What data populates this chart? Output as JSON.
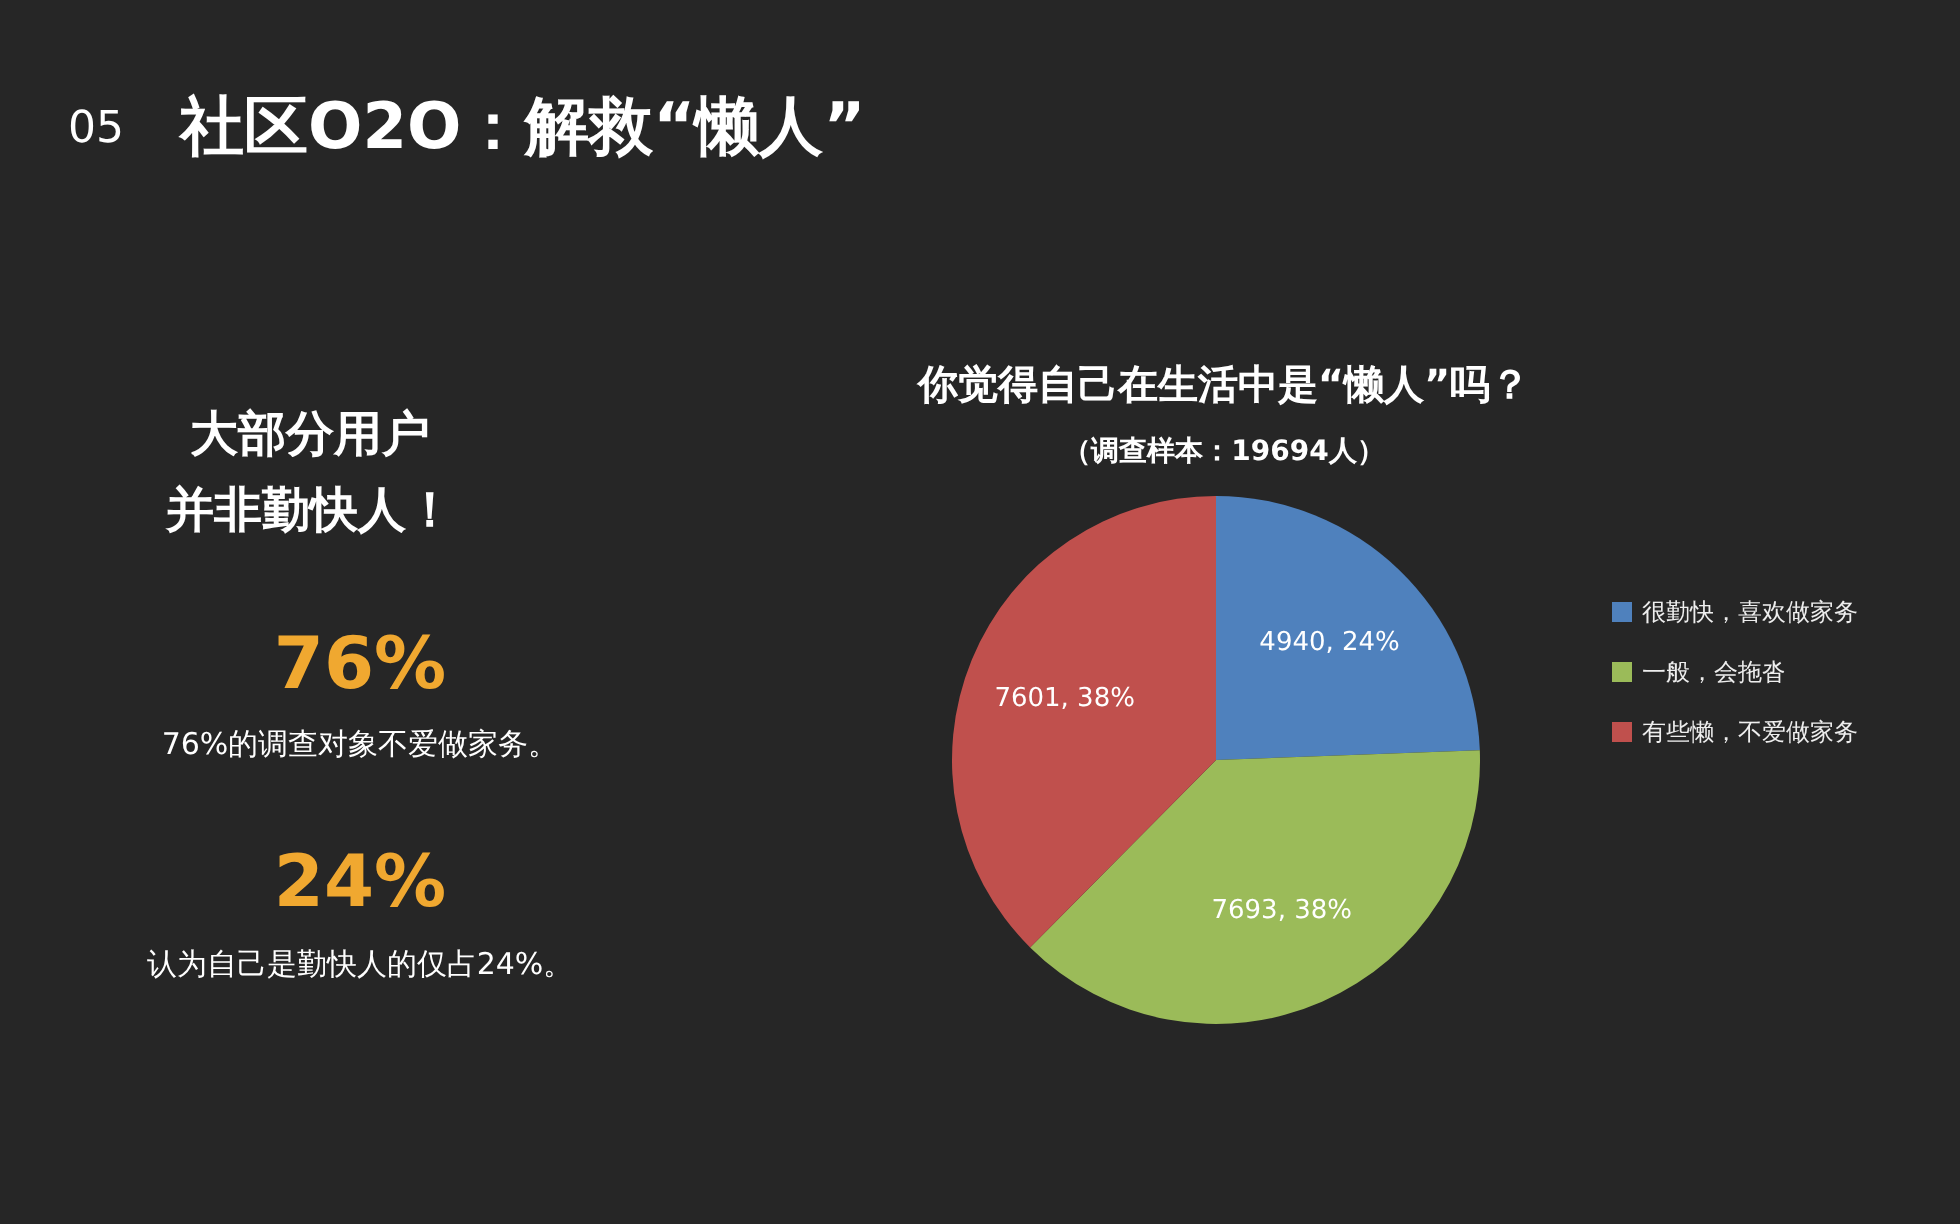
{
  "chart_data": {
    "type": "pie",
    "title": "你觉得自己在生活中是“懒人”吗？",
    "subtitle": "（调查样本：19694人）",
    "categories": [
      "很勤快，喜欢做家务",
      "一般，会拖沓",
      "有些懒，不爱做家务"
    ],
    "values": [
      4940,
      7693,
      7601
    ],
    "colors": [
      "#4f81bd",
      "#9bbb59",
      "#c0504d"
    ],
    "value_labels": [
      "4940, 24%",
      "7693, 38%",
      "7601, 38%"
    ],
    "legend": "right",
    "annotations": [
      "05",
      "社区O2O：解救“懒人”",
      "大部分用户",
      "并非勤快人！",
      "76%",
      "76%的调查对象不爱做家务。",
      "24%",
      "认为自己是勤快人的仅占24%。"
    ]
  }
}
